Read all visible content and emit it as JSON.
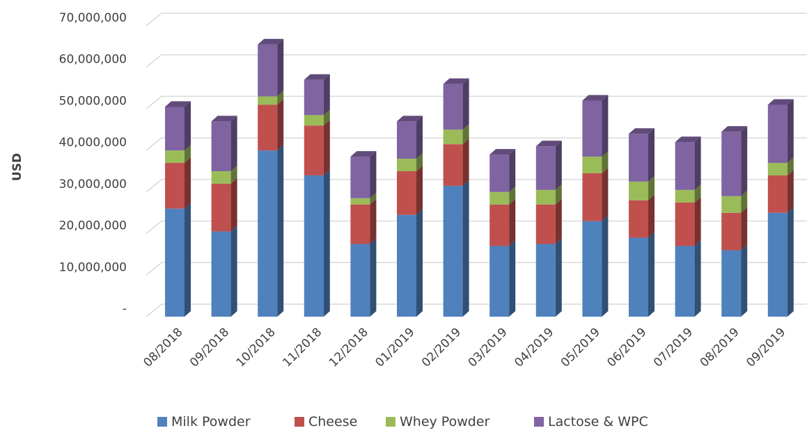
{
  "chart_data": {
    "type": "bar",
    "stacked": true,
    "style": "3d-column",
    "ylabel": "USD",
    "ylim": [
      0,
      70000000
    ],
    "yticks": [
      0,
      10000000,
      20000000,
      30000000,
      40000000,
      50000000,
      60000000,
      70000000
    ],
    "ytick_labels": [
      "-",
      "10,000,000",
      "20,000,000",
      "30,000,000",
      "40,000,000",
      "50,000,000",
      "60,000,000",
      "70,000,000"
    ],
    "grid": true,
    "legend_position": "bottom",
    "categories": [
      "08/2018",
      "09/2018",
      "10/2018",
      "11/2018",
      "12/2018",
      "01/2019",
      "02/2019",
      "03/2019",
      "04/2019",
      "05/2019",
      "06/2019",
      "07/2019",
      "08/2019",
      "09/2019"
    ],
    "series": [
      {
        "name": "Milk Powder",
        "color": "#4f81bd",
        "values": [
          26000000,
          20500000,
          40000000,
          34000000,
          17500000,
          24500000,
          31500000,
          17000000,
          17500000,
          23000000,
          19000000,
          17000000,
          16000000,
          25000000
        ]
      },
      {
        "name": "Cheese",
        "color": "#c0504d",
        "values": [
          11000000,
          11500000,
          11000000,
          12000000,
          9500000,
          10500000,
          10000000,
          10000000,
          9500000,
          11500000,
          9000000,
          10500000,
          9000000,
          9000000
        ]
      },
      {
        "name": "Whey Powder",
        "color": "#9bbb59",
        "values": [
          3000000,
          3000000,
          2000000,
          2500000,
          1500000,
          3000000,
          3500000,
          3000000,
          3500000,
          4000000,
          4500000,
          3000000,
          4000000,
          3000000
        ]
      },
      {
        "name": "Lactose & WPC",
        "color": "#8064a2",
        "values": [
          10500000,
          12000000,
          12500000,
          8500000,
          10000000,
          9000000,
          11000000,
          9000000,
          10500000,
          13500000,
          11500000,
          11500000,
          15500000,
          14000000
        ]
      }
    ]
  }
}
